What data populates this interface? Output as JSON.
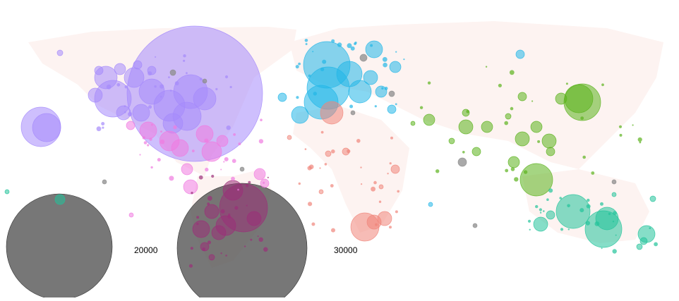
{
  "map": {
    "type": "bubble-map",
    "background_land_color": "#fdf3f1",
    "legend_labels": [
      "20000",
      "30000"
    ],
    "legend_bubble_color": "#555555",
    "region_colors": {
      "north_america": "#a58afb",
      "central_america": "#f07ae0",
      "south_america": "#9b2f79",
      "europe": "#22b6e7",
      "africa": "#f0857a",
      "asia": "#5bb21c",
      "oceania": "#22c39a",
      "other": "#8c8c8c"
    }
  }
}
